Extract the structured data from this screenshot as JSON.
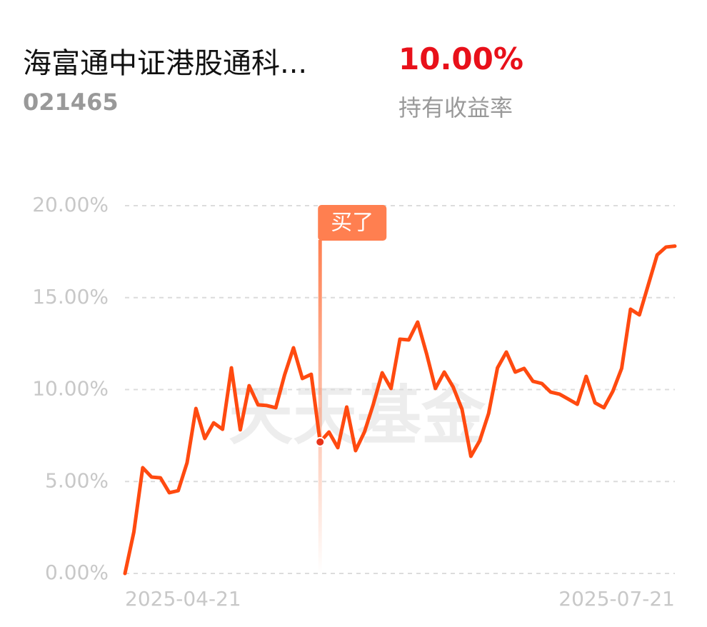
{
  "header": {
    "title": "海富通中证港股通科...",
    "code": "021465",
    "return": "10.00%",
    "return_label": "持有收益率"
  },
  "chart_data": {
    "type": "line",
    "watermark": "天天基金",
    "categories": [
      "2025-04-21",
      null,
      null,
      null,
      null,
      null,
      null,
      null,
      null,
      null,
      null,
      null,
      null,
      null,
      null,
      null,
      null,
      null,
      null,
      null,
      null,
      null,
      null,
      null,
      null,
      null,
      null,
      null,
      null,
      null,
      null,
      null,
      null,
      null,
      null,
      null,
      null,
      null,
      null,
      null,
      null,
      null,
      null,
      null,
      null,
      null,
      null,
      null,
      null,
      null,
      null,
      null,
      null,
      null,
      null,
      null,
      null,
      null,
      null,
      null,
      null,
      null,
      "2025-07-21"
    ],
    "series": [
      {
        "name": "持有收益率",
        "color": "#ff4a10",
        "values": [
          0,
          2.25,
          5.75,
          5.24,
          5.2,
          4.39,
          4.5,
          6.02,
          8.97,
          7.34,
          8.19,
          7.84,
          11.18,
          7.81,
          10.21,
          9.17,
          9.13,
          9.01,
          10.8,
          12.27,
          10.6,
          10.83,
          7.15,
          7.69,
          6.84,
          9.05,
          6.68,
          7.69,
          9.2,
          10.91,
          10.06,
          12.74,
          12.7,
          13.67,
          11.96,
          10.06,
          10.95,
          10.14,
          8.93,
          6.37,
          7.22,
          8.7,
          11.18,
          12.04,
          10.95,
          11.15,
          10.45,
          10.33,
          9.86,
          9.75,
          9.48,
          9.2,
          10.72,
          9.28,
          9.01,
          9.9,
          11.15,
          14.37,
          14.06,
          15.69,
          17.32,
          17.75,
          17.8
        ]
      }
    ],
    "annotations": [
      {
        "text": "买了",
        "index": 22
      }
    ],
    "ylim": [
      0,
      20
    ],
    "yticks": [
      {
        "value": 0,
        "label": "0.00%"
      },
      {
        "value": 5,
        "label": "5.00%"
      },
      {
        "value": 10,
        "label": "10.00%"
      },
      {
        "value": 15,
        "label": "15.00%"
      },
      {
        "value": 20,
        "label": "20.00%"
      }
    ],
    "grid": true
  }
}
